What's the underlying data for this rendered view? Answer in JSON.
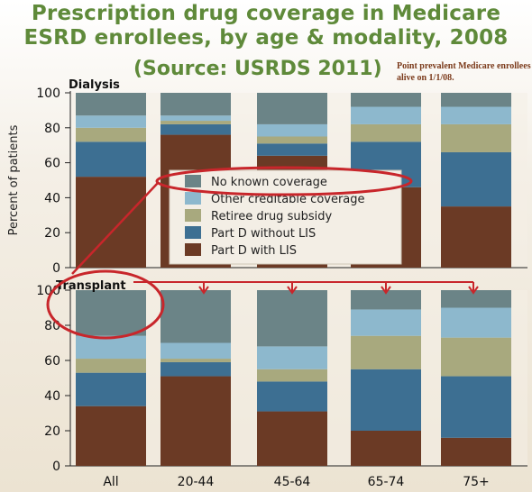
{
  "header": {
    "title_line1": "Prescription drug coverage in Medicare",
    "title_line2": "ESRD enrollees, by age & modality, 2008",
    "source": "(Source: USRDS 2011)",
    "note": "Point prevalent Medicare enrollees alive on 1/1/08."
  },
  "colors": {
    "No known coverage": "#6b8487",
    "Other creditable coverage": "#8db8cd",
    "Retiree drug subsidy": "#a8a97e",
    "Part D without LIS": "#3d6f92",
    "Part D with LIS": "#6b3a25",
    "annotation_red": "#c8262b"
  },
  "chart_data": [
    {
      "type": "bar",
      "stacked": true,
      "title": "Dialysis",
      "ylabel": "Percent of patients",
      "ylim": [
        0,
        100
      ],
      "yticks": [
        0,
        20,
        40,
        60,
        80,
        100
      ],
      "categories": [
        "All",
        "20-44",
        "45-64",
        "65-74",
        "75+"
      ],
      "series": [
        {
          "name": "Part D with LIS",
          "values": [
            52,
            76,
            64,
            46,
            35
          ]
        },
        {
          "name": "Part D without LIS",
          "values": [
            20,
            6,
            7,
            26,
            31
          ]
        },
        {
          "name": "Retiree drug subsidy",
          "values": [
            8,
            2,
            4,
            10,
            16
          ]
        },
        {
          "name": "Other creditable coverage",
          "values": [
            7,
            3,
            7,
            10,
            10
          ]
        },
        {
          "name": "No known coverage",
          "values": [
            13,
            13,
            18,
            8,
            8
          ]
        }
      ],
      "legend_position": "inside-center"
    },
    {
      "type": "bar",
      "stacked": true,
      "title": "Transplant",
      "ylabel": "Percent of patients",
      "ylim": [
        0,
        100
      ],
      "yticks": [
        0,
        20,
        40,
        60,
        80,
        100
      ],
      "categories": [
        "All",
        "20-44",
        "45-64",
        "65-74",
        "75+"
      ],
      "series": [
        {
          "name": "Part D with LIS",
          "values": [
            34,
            51,
            31,
            20,
            16
          ]
        },
        {
          "name": "Part D without LIS",
          "values": [
            19,
            8,
            17,
            35,
            35
          ]
        },
        {
          "name": "Retiree drug subsidy",
          "values": [
            8,
            2,
            7,
            19,
            22
          ]
        },
        {
          "name": "Other creditable coverage",
          "values": [
            13,
            9,
            13,
            15,
            17
          ]
        },
        {
          "name": "No known coverage",
          "values": [
            26,
            30,
            32,
            11,
            10
          ]
        }
      ]
    }
  ]
}
